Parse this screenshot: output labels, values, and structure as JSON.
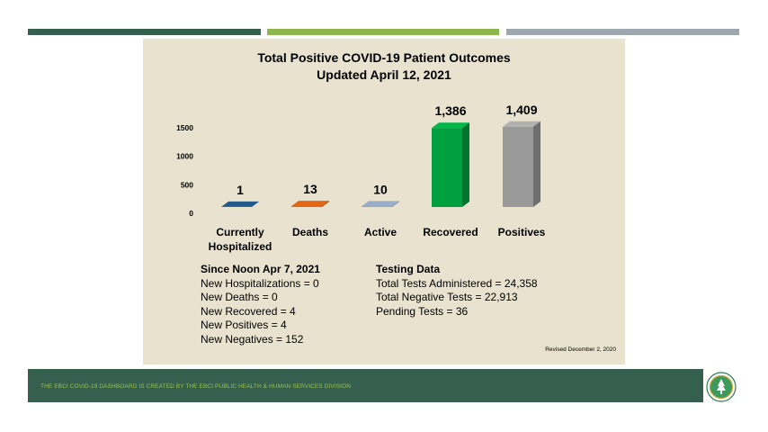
{
  "colors": {
    "bar_dark_green": "#35604f",
    "bar_light_green": "#8db64c",
    "bar_gray": "#9ea7b0",
    "panel_bg": "#e9e2ce",
    "footer_bg": "#35604f",
    "footer_text": "#9bc253"
  },
  "chart_data": {
    "type": "bar",
    "title": "Total Positive COVID-19 Patient Outcomes",
    "subtitle": "Updated April 12, 2021",
    "categories": [
      "Currently Hospitalized",
      "Deaths",
      "Active",
      "Recovered",
      "Positives"
    ],
    "category_lines": [
      [
        "Currently",
        "Hospitalized"
      ],
      [
        "Deaths"
      ],
      [
        "Active"
      ],
      [
        "Recovered"
      ],
      [
        "Positives"
      ]
    ],
    "values": [
      1,
      13,
      10,
      1386,
      1409
    ],
    "data_labels": [
      "1",
      "13",
      "10",
      "1,386",
      "1,409"
    ],
    "bar_colors": [
      "#1f4e79",
      "#c55a11",
      "#8497b0",
      "#00a040",
      "#9a9a9a"
    ],
    "y_ticks": [
      0,
      500,
      1000,
      1500
    ],
    "ylim": [
      0,
      1500
    ],
    "legend": "none",
    "grid": false
  },
  "stats": {
    "since": {
      "header": "Since Noon Apr 7, 2021",
      "lines": [
        "New Hospitalizations = 0",
        "New Deaths = 0",
        "New Recovered = 4",
        "New Positives = 4",
        "New Negatives = 152"
      ]
    },
    "testing": {
      "header": "Testing Data",
      "lines": [
        "Total Tests Administered = 24,358",
        "Total Negative Tests = 22,913",
        "Pending Tests = 36"
      ]
    }
  },
  "revised": "Revised December 2, 2020",
  "footer": {
    "text": "THE EBCI COVID-19 DASHBOARD IS CREATED BY THE EBCI PUBLIC HEALTH & HUMAN SERVICES DIVISION"
  },
  "logo": {
    "icon": "ebci-seal-icon"
  }
}
